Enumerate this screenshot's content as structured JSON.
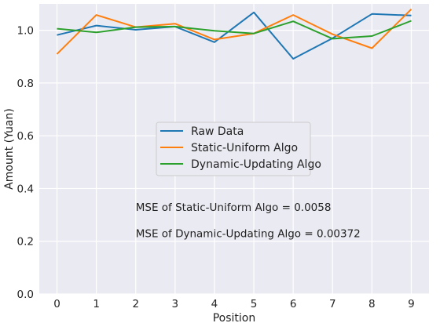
{
  "chart_data": {
    "type": "line",
    "xlabel": "Position",
    "ylabel": "Amount (Yuan)",
    "xlim": [
      -0.45,
      9.45
    ],
    "ylim": [
      0.0,
      1.1
    ],
    "xticks": [
      "0",
      "1",
      "2",
      "3",
      "4",
      "5",
      "6",
      "7",
      "8",
      "9"
    ],
    "yticks": [
      "0.0",
      "0.2",
      "0.4",
      "0.6",
      "0.8",
      "1.0"
    ],
    "grid": true,
    "legend_position": "center",
    "x": [
      0,
      1,
      2,
      3,
      4,
      5,
      6,
      7,
      8,
      9
    ],
    "series": [
      {
        "name": "Raw Data",
        "color": "#1f77b4",
        "values": [
          0.982,
          1.018,
          1.002,
          1.014,
          0.955,
          1.068,
          0.892,
          0.97,
          1.062,
          1.056
        ]
      },
      {
        "name": "Static-Uniform Algo",
        "color": "#ff7f0e",
        "values": [
          0.91,
          1.058,
          1.012,
          1.025,
          0.965,
          0.988,
          1.058,
          0.985,
          0.932,
          1.08
        ]
      },
      {
        "name": "Dynamic-Updating Algo",
        "color": "#2ca02c",
        "values": [
          1.006,
          0.992,
          1.012,
          1.014,
          0.998,
          0.988,
          1.034,
          0.968,
          0.978,
          1.036
        ]
      }
    ],
    "annotations": [
      {
        "text": "MSE of Static-Uniform Algo = 0.0058",
        "x": 2,
        "y": 0.315
      },
      {
        "text": "MSE of Dynamic-Updating Algo = 0.00372",
        "x": 2,
        "y": 0.215
      }
    ]
  },
  "colors": {
    "plot_background": "#eaeaf2",
    "grid": "#ffffff"
  }
}
